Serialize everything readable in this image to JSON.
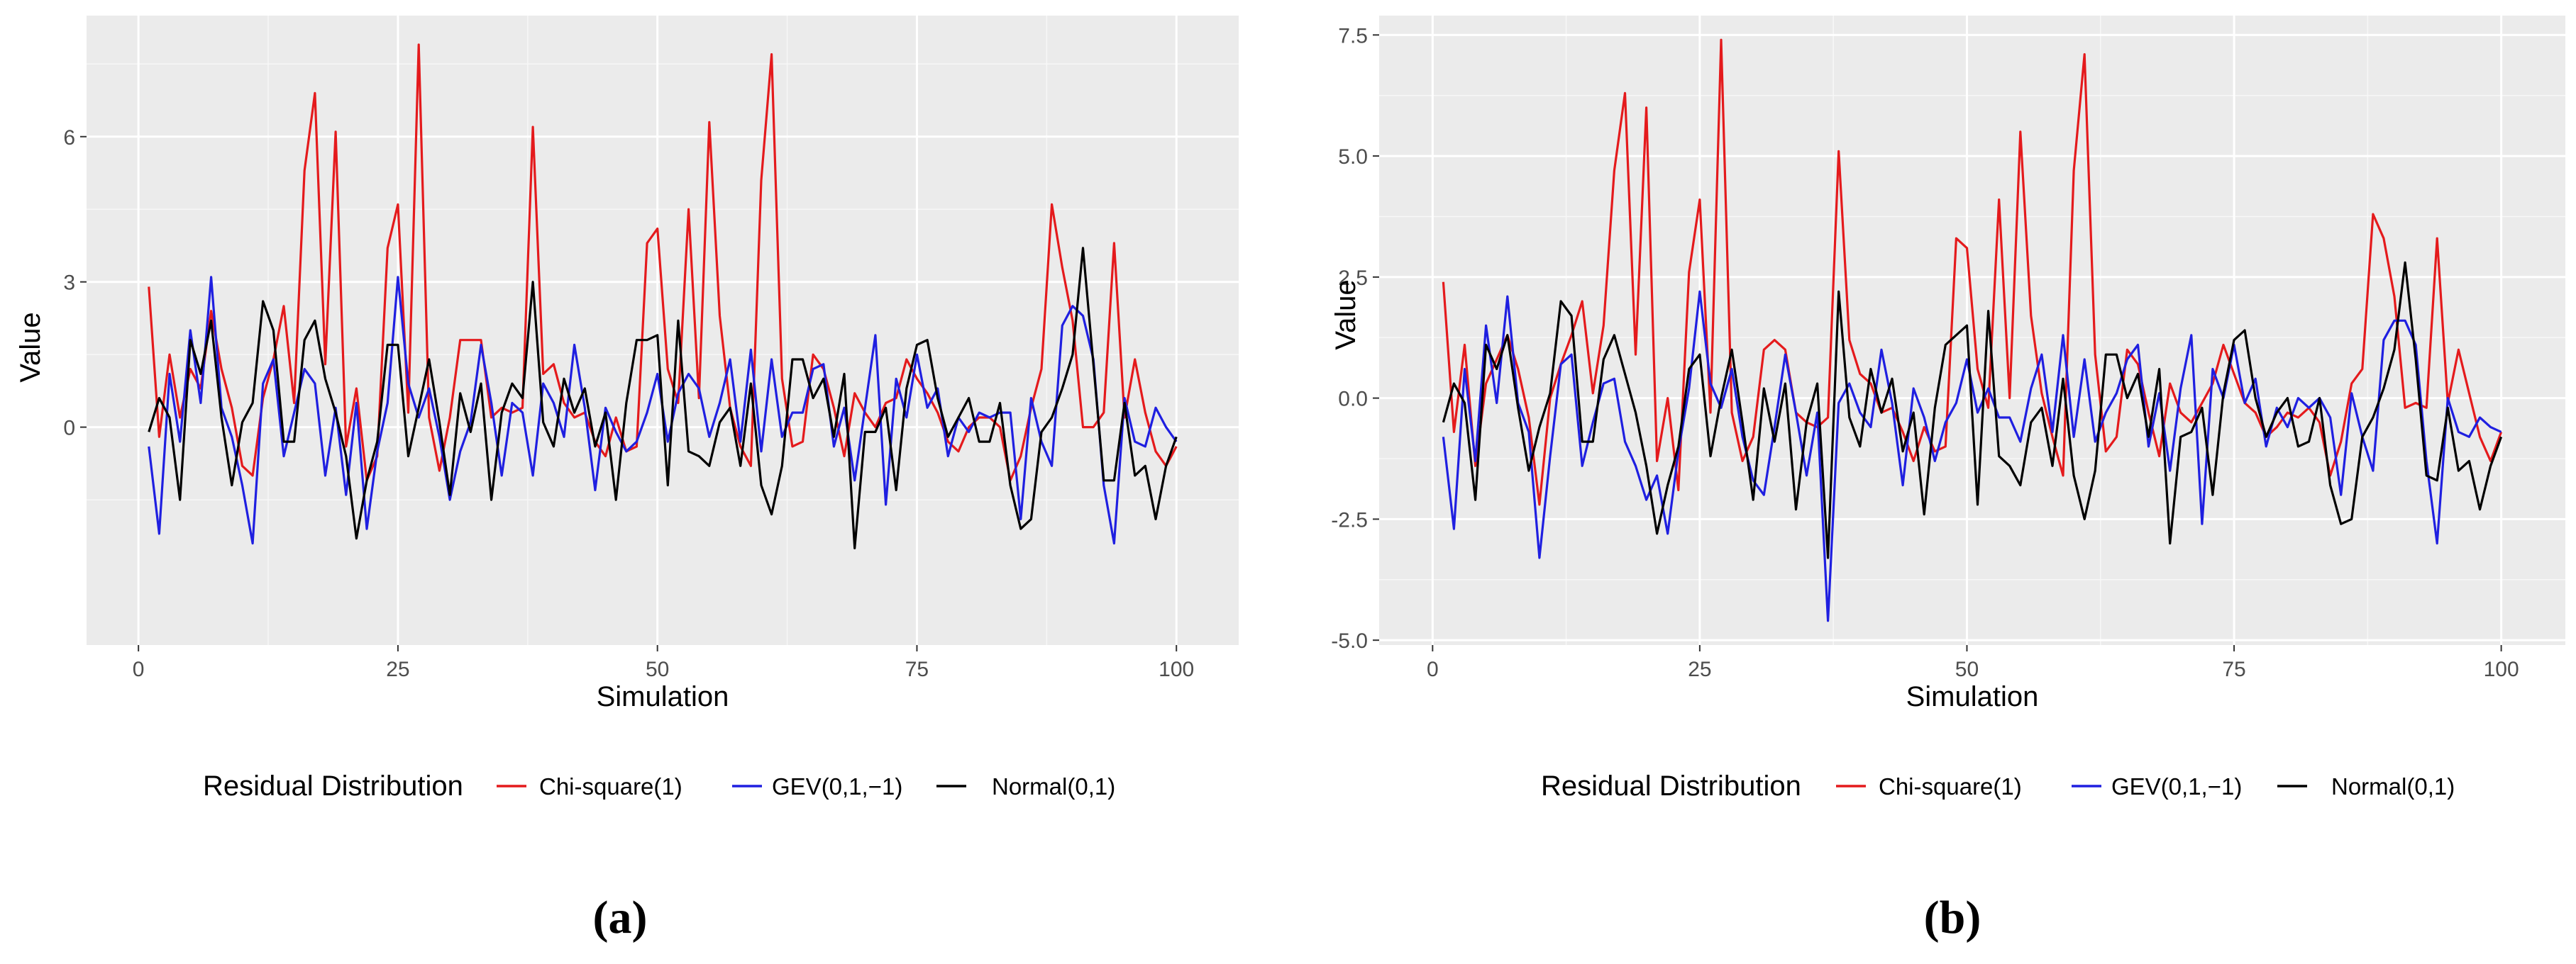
{
  "chart_data": [
    {
      "type": "line",
      "panel_label": "(a)",
      "xlabel": "Simulation",
      "ylabel": "Value",
      "xlim": [
        -5,
        106
      ],
      "ylim": [
        -4.5,
        8.5
      ],
      "xticks": [
        0,
        25,
        50,
        75,
        100
      ],
      "yticks": [
        0,
        3,
        6
      ],
      "tick_labels_x": [
        "0",
        "25",
        "50",
        "75",
        "100"
      ],
      "tick_labels_y": [
        "0",
        "3",
        "6"
      ],
      "grid": true,
      "legend_title": "Residual Distribution",
      "legend_position": "bottom",
      "x": [
        1,
        2,
        3,
        4,
        5,
        6,
        7,
        8,
        9,
        10,
        11,
        12,
        13,
        14,
        15,
        16,
        17,
        18,
        19,
        20,
        21,
        22,
        23,
        24,
        25,
        26,
        27,
        28,
        29,
        30,
        31,
        32,
        33,
        34,
        35,
        36,
        37,
        38,
        39,
        40,
        41,
        42,
        43,
        44,
        45,
        46,
        47,
        48,
        49,
        50,
        51,
        52,
        53,
        54,
        55,
        56,
        57,
        58,
        59,
        60,
        61,
        62,
        63,
        64,
        65,
        66,
        67,
        68,
        69,
        70,
        71,
        72,
        73,
        74,
        75,
        76,
        77,
        78,
        79,
        80,
        81,
        82,
        83,
        84,
        85,
        86,
        87,
        88,
        89,
        90,
        91,
        92,
        93,
        94,
        95,
        96,
        97,
        98,
        99,
        100
      ],
      "series": [
        {
          "name": "Chi-square(1)",
          "color": "#e41a1c",
          "values": [
            2.9,
            -0.2,
            1.5,
            0.2,
            1.2,
            0.8,
            2.4,
            1.2,
            0.4,
            -0.8,
            -1.0,
            0.6,
            1.4,
            2.5,
            0.5,
            5.3,
            6.9,
            1.3,
            6.1,
            -0.4,
            0.8,
            -1.1,
            -0.6,
            3.7,
            4.6,
            0.3,
            7.9,
            0.2,
            -0.9,
            0.2,
            1.8,
            1.8,
            1.8,
            0.2,
            0.4,
            0.3,
            0.4,
            6.2,
            1.1,
            1.3,
            0.5,
            0.2,
            0.3,
            -0.3,
            -0.6,
            0.2,
            -0.5,
            -0.4,
            3.8,
            4.1,
            1.2,
            0.5,
            4.5,
            0.6,
            6.3,
            2.3,
            0.4,
            -0.4,
            -0.8,
            5.1,
            7.7,
            1.0,
            -0.4,
            -0.3,
            1.5,
            1.2,
            0.4,
            -0.6,
            0.7,
            0.3,
            0.0,
            0.5,
            0.6,
            1.4,
            1.0,
            0.7,
            0.3,
            -0.3,
            -0.5,
            0.0,
            0.2,
            0.2,
            0.0,
            -1.1,
            -0.6,
            0.4,
            1.2,
            4.6,
            3.3,
            2.2,
            0.0,
            0.0,
            0.3,
            3.8,
            0.2,
            1.4,
            0.3,
            -0.5,
            -0.8,
            -0.4
          ]
        },
        {
          "name": "GEV(0,1,−1)",
          "color": "#1f1fe0",
          "values": [
            -0.4,
            -2.2,
            1.1,
            -0.3,
            2.0,
            0.5,
            3.1,
            0.4,
            -0.2,
            -1.2,
            -2.4,
            0.9,
            1.4,
            -0.6,
            0.3,
            1.2,
            0.9,
            -1.0,
            0.4,
            -1.4,
            0.5,
            -2.1,
            -0.5,
            0.5,
            3.1,
            0.9,
            0.2,
            0.8,
            -0.2,
            -1.5,
            -0.5,
            0.1,
            1.7,
            0.5,
            -1.0,
            0.5,
            0.3,
            -1.0,
            0.9,
            0.5,
            -0.2,
            1.7,
            0.4,
            -1.3,
            0.4,
            -0.1,
            -0.5,
            -0.3,
            0.3,
            1.1,
            -0.3,
            0.7,
            1.1,
            0.8,
            -0.2,
            0.5,
            1.4,
            -0.3,
            1.6,
            -0.5,
            1.4,
            -0.2,
            0.3,
            0.3,
            1.2,
            1.3,
            -0.4,
            0.4,
            -1.1,
            0.4,
            1.9,
            -1.6,
            1.0,
            0.2,
            1.5,
            0.4,
            0.8,
            -0.6,
            0.2,
            -0.1,
            0.3,
            0.2,
            0.3,
            0.3,
            -1.9,
            0.6,
            -0.3,
            -0.8,
            2.1,
            2.5,
            2.3,
            1.4,
            -1.2,
            -2.4,
            0.6,
            -0.3,
            -0.4,
            0.4,
            0.0,
            -0.3
          ]
        },
        {
          "name": "Normal(0,1)",
          "color": "#000000",
          "values": [
            -0.1,
            0.6,
            0.2,
            -1.5,
            1.8,
            1.1,
            2.2,
            0.2,
            -1.2,
            0.1,
            0.5,
            2.6,
            2.0,
            -0.3,
            -0.3,
            1.8,
            2.2,
            1.0,
            0.3,
            -0.6,
            -2.3,
            -1.1,
            -0.3,
            1.7,
            1.7,
            -0.6,
            0.4,
            1.4,
            0.1,
            -1.4,
            0.7,
            -0.1,
            0.9,
            -1.5,
            0.3,
            0.9,
            0.6,
            3.0,
            0.1,
            -0.4,
            1.0,
            0.3,
            0.8,
            -0.4,
            0.3,
            -1.5,
            0.5,
            1.8,
            1.8,
            1.9,
            -1.2,
            2.2,
            -0.5,
            -0.6,
            -0.8,
            0.1,
            0.4,
            -0.8,
            0.9,
            -1.2,
            -1.8,
            -0.8,
            1.4,
            1.4,
            0.6,
            1.0,
            -0.2,
            1.1,
            -2.5,
            -0.1,
            -0.1,
            0.4,
            -1.3,
            0.8,
            1.7,
            1.8,
            0.6,
            -0.2,
            0.2,
            0.6,
            -0.3,
            -0.3,
            0.5,
            -1.2,
            -2.1,
            -1.9,
            -0.1,
            0.2,
            0.8,
            1.5,
            3.7,
            1.3,
            -1.1,
            -1.1,
            0.5,
            -1.0,
            -0.8,
            -1.9,
            -0.8,
            -0.2
          ]
        }
      ]
    },
    {
      "type": "line",
      "panel_label": "(b)",
      "xlabel": "Simulation",
      "ylabel": "Value",
      "xlim": [
        -5,
        106
      ],
      "ylim": [
        -5.1,
        7.9
      ],
      "xticks": [
        0,
        25,
        50,
        75,
        100
      ],
      "yticks": [
        -5.0,
        -2.5,
        0.0,
        2.5,
        5.0,
        7.5
      ],
      "tick_labels_x": [
        "0",
        "25",
        "50",
        "75",
        "100"
      ],
      "tick_labels_y": [
        "-5.0",
        "-2.5",
        "0.0",
        "2.5",
        "5.0",
        "7.5"
      ],
      "grid": true,
      "legend_title": "Residual Distribution",
      "legend_position": "bottom",
      "x": [
        1,
        2,
        3,
        4,
        5,
        6,
        7,
        8,
        9,
        10,
        11,
        12,
        13,
        14,
        15,
        16,
        17,
        18,
        19,
        20,
        21,
        22,
        23,
        24,
        25,
        26,
        27,
        28,
        29,
        30,
        31,
        32,
        33,
        34,
        35,
        36,
        37,
        38,
        39,
        40,
        41,
        42,
        43,
        44,
        45,
        46,
        47,
        48,
        49,
        50,
        51,
        52,
        53,
        54,
        55,
        56,
        57,
        58,
        59,
        60,
        61,
        62,
        63,
        64,
        65,
        66,
        67,
        68,
        69,
        70,
        71,
        72,
        73,
        74,
        75,
        76,
        77,
        78,
        79,
        80,
        81,
        82,
        83,
        84,
        85,
        86,
        87,
        88,
        89,
        90,
        91,
        92,
        93,
        94,
        95,
        96,
        97,
        98,
        99,
        100
      ],
      "series": [
        {
          "name": "Chi-square(1)",
          "color": "#e41a1c",
          "values": [
            2.4,
            -0.7,
            1.1,
            -1.4,
            0.3,
            0.8,
            1.3,
            0.6,
            -0.4,
            -2.2,
            0.0,
            0.7,
            1.3,
            2.0,
            0.1,
            1.5,
            4.7,
            6.3,
            0.9,
            6.0,
            -1.3,
            0.0,
            -1.9,
            2.6,
            4.1,
            -0.3,
            7.4,
            -0.3,
            -1.3,
            -0.8,
            1.0,
            1.2,
            1.0,
            -0.3,
            -0.5,
            -0.6,
            -0.4,
            5.1,
            1.2,
            0.5,
            0.3,
            -0.3,
            -0.2,
            -0.7,
            -1.3,
            -0.6,
            -1.1,
            -1.0,
            3.3,
            3.1,
            0.6,
            -0.2,
            4.1,
            0.0,
            5.5,
            1.7,
            0.1,
            -0.8,
            -1.6,
            4.7,
            7.1,
            0.9,
            -1.1,
            -0.8,
            1.0,
            0.7,
            -0.3,
            -1.2,
            0.3,
            -0.3,
            -0.5,
            -0.1,
            0.3,
            1.1,
            0.5,
            -0.1,
            -0.3,
            -0.8,
            -0.6,
            -0.3,
            -0.4,
            -0.2,
            -0.5,
            -1.6,
            -0.9,
            0.3,
            0.6,
            3.8,
            3.3,
            2.1,
            -0.2,
            -0.1,
            -0.2,
            3.3,
            -0.1,
            1.0,
            0.1,
            -0.8,
            -1.3,
            -0.7
          ]
        },
        {
          "name": "GEV(0,1,−1)",
          "color": "#1f1fe0",
          "values": [
            -0.8,
            -2.7,
            0.6,
            -1.3,
            1.5,
            -0.1,
            2.1,
            -0.1,
            -0.7,
            -3.3,
            -1.2,
            0.7,
            0.9,
            -1.4,
            -0.5,
            0.3,
            0.4,
            -0.9,
            -1.4,
            -2.1,
            -1.6,
            -2.8,
            -1.1,
            0.2,
            2.2,
            0.3,
            -0.2,
            0.6,
            -0.8,
            -1.7,
            -2.0,
            -0.6,
            0.9,
            -0.3,
            -1.6,
            -0.3,
            -4.6,
            -0.1,
            0.3,
            -0.3,
            -0.6,
            1.0,
            -0.1,
            -1.8,
            0.2,
            -0.4,
            -1.3,
            -0.5,
            -0.1,
            0.8,
            -0.3,
            0.2,
            -0.4,
            -0.4,
            -0.9,
            0.2,
            0.9,
            -0.7,
            1.3,
            -0.8,
            0.8,
            -0.9,
            -0.3,
            0.1,
            0.8,
            1.1,
            -1.0,
            0.1,
            -1.5,
            0.2,
            1.3,
            -2.6,
            0.6,
            0.0,
            1.1,
            -0.1,
            0.4,
            -1.0,
            -0.2,
            -0.6,
            0.0,
            -0.2,
            0.0,
            -0.4,
            -2.0,
            0.1,
            -0.8,
            -1.5,
            1.2,
            1.6,
            1.6,
            1.1,
            -1.3,
            -3.0,
            0.0,
            -0.7,
            -0.8,
            -0.4,
            -0.6,
            -0.7
          ]
        },
        {
          "name": "Normal(0,1)",
          "color": "#000000",
          "values": [
            -0.5,
            0.3,
            -0.1,
            -2.1,
            1.1,
            0.6,
            1.3,
            -0.2,
            -1.5,
            -0.6,
            0.1,
            2.0,
            1.7,
            -0.9,
            -0.9,
            0.8,
            1.3,
            0.5,
            -0.3,
            -1.4,
            -2.8,
            -1.8,
            -1.0,
            0.6,
            0.9,
            -1.2,
            0.0,
            1.0,
            -0.5,
            -2.1,
            0.2,
            -0.9,
            0.3,
            -2.3,
            -0.5,
            0.3,
            -3.3,
            2.2,
            -0.4,
            -1.0,
            0.6,
            -0.3,
            0.4,
            -1.1,
            -0.3,
            -2.4,
            -0.2,
            1.1,
            1.3,
            1.5,
            -2.2,
            1.8,
            -1.2,
            -1.4,
            -1.8,
            -0.5,
            -0.2,
            -1.4,
            0.4,
            -1.6,
            -2.5,
            -1.5,
            0.9,
            0.9,
            0.0,
            0.5,
            -0.8,
            0.6,
            -3.0,
            -0.8,
            -0.7,
            -0.2,
            -2.0,
            0.1,
            1.2,
            1.4,
            0.0,
            -0.8,
            -0.3,
            0.0,
            -1.0,
            -0.9,
            0.0,
            -1.8,
            -2.6,
            -2.5,
            -0.8,
            -0.4,
            0.2,
            1.0,
            2.8,
            0.8,
            -1.6,
            -1.7,
            -0.2,
            -1.5,
            -1.3,
            -2.3,
            -1.4,
            -0.8
          ]
        }
      ]
    }
  ]
}
